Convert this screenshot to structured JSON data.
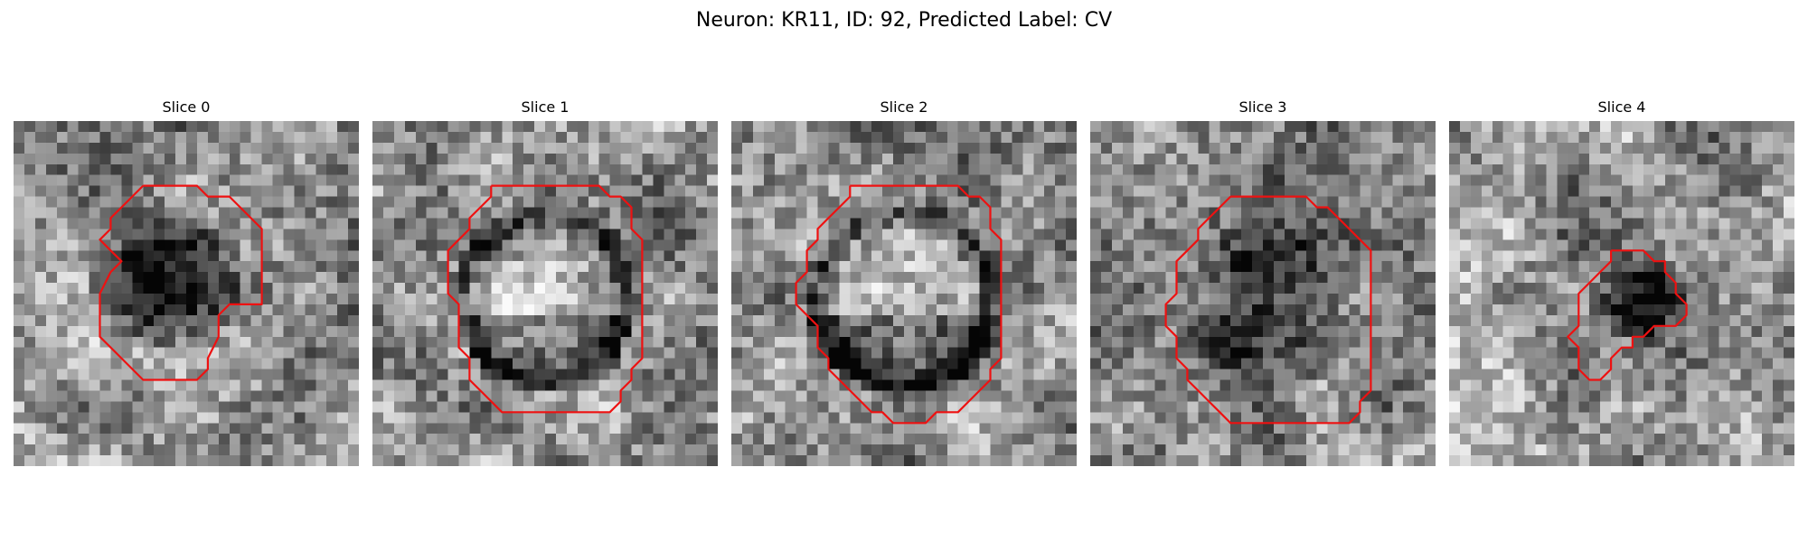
{
  "figure": {
    "title": "Neuron: KR11, ID: 92, Predicted Label: CV"
  },
  "panels": [
    {
      "title": "Slice 0"
    },
    {
      "title": "Slice 1"
    },
    {
      "title": "Slice 2"
    },
    {
      "title": "Slice 3"
    },
    {
      "title": "Slice 4"
    }
  ],
  "colors": {
    "contour": "#ee1111",
    "colormap": "grayscale"
  }
}
